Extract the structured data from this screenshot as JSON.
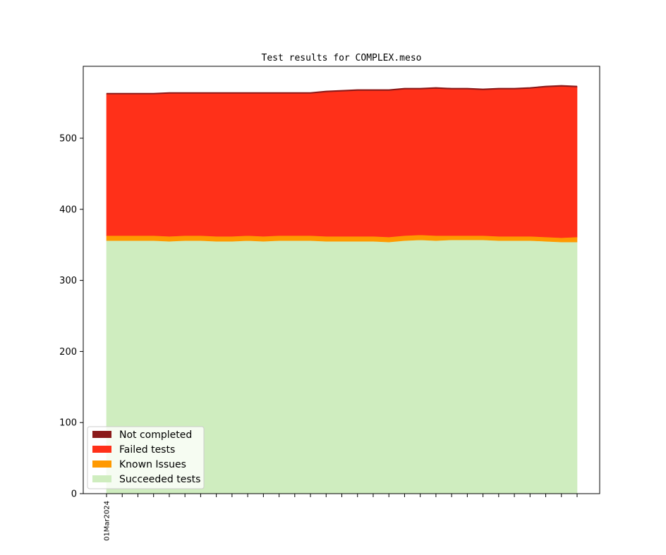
{
  "chart_data": {
    "type": "area",
    "stacked": true,
    "title": "Test results for COMPLEX.meso",
    "xlabel": "",
    "ylabel": "",
    "ylim": [
      0,
      600
    ],
    "y_ticks": [
      0,
      100,
      200,
      300,
      400,
      500
    ],
    "x_count": 31,
    "x_tick_labels": [
      "01Mar2024"
    ],
    "grid": false,
    "legend_position": "lower-left",
    "series": [
      {
        "name": "Succeeded tests",
        "color": "#cfedbf",
        "values": [
          356,
          356,
          356,
          356,
          355,
          356,
          356,
          355,
          355,
          356,
          355,
          356,
          356,
          356,
          355,
          355,
          355,
          355,
          354,
          356,
          357,
          356,
          357,
          357,
          357,
          356,
          356,
          356,
          355,
          354,
          354
        ]
      },
      {
        "name": "Known Issues",
        "color": "#ff9900",
        "values": [
          7,
          7,
          7,
          7,
          7,
          7,
          7,
          7,
          7,
          7,
          7,
          7,
          7,
          7,
          7,
          7,
          7,
          7,
          7,
          7,
          7,
          7,
          6,
          6,
          6,
          6,
          6,
          6,
          6,
          6,
          7
        ]
      },
      {
        "name": "Failed tests",
        "color": "#ff3019",
        "values": [
          199,
          199,
          199,
          199,
          201,
          200,
          200,
          201,
          201,
          200,
          201,
          200,
          200,
          200,
          203,
          204,
          205,
          205,
          206,
          206,
          205,
          207,
          206,
          206,
          205,
          207,
          207,
          208,
          211,
          213,
          211
        ]
      },
      {
        "name": "Not completed",
        "color": "#8b1a1a",
        "values": [
          1,
          1,
          1,
          1,
          1,
          1,
          1,
          1,
          1,
          1,
          1,
          1,
          1,
          1,
          1,
          1,
          1,
          1,
          1,
          1,
          1,
          1,
          1,
          1,
          1,
          1,
          1,
          1,
          1,
          1,
          1
        ]
      }
    ]
  }
}
